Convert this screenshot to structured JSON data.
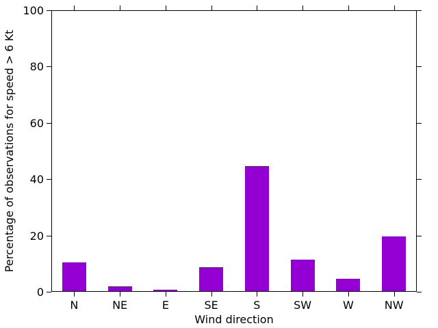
{
  "chart_data": {
    "type": "bar",
    "categories": [
      "N",
      "NE",
      "E",
      "SE",
      "S",
      "SW",
      "W",
      "NW"
    ],
    "values": [
      10.1,
      1.6,
      0.4,
      8.4,
      44.3,
      11.2,
      4.4,
      19.3
    ],
    "title": "",
    "xlabel": "Wind direction",
    "ylabel": "Percentage of observations for speed > 6 Kt",
    "ylim": [
      0,
      100
    ],
    "yticks": [
      0,
      20,
      40,
      60,
      80,
      100
    ],
    "bar_color": "#9400D3",
    "axis_color": "#000000",
    "background_color": "#ffffff",
    "grid": false,
    "legend": false,
    "tick_direction": "out"
  }
}
